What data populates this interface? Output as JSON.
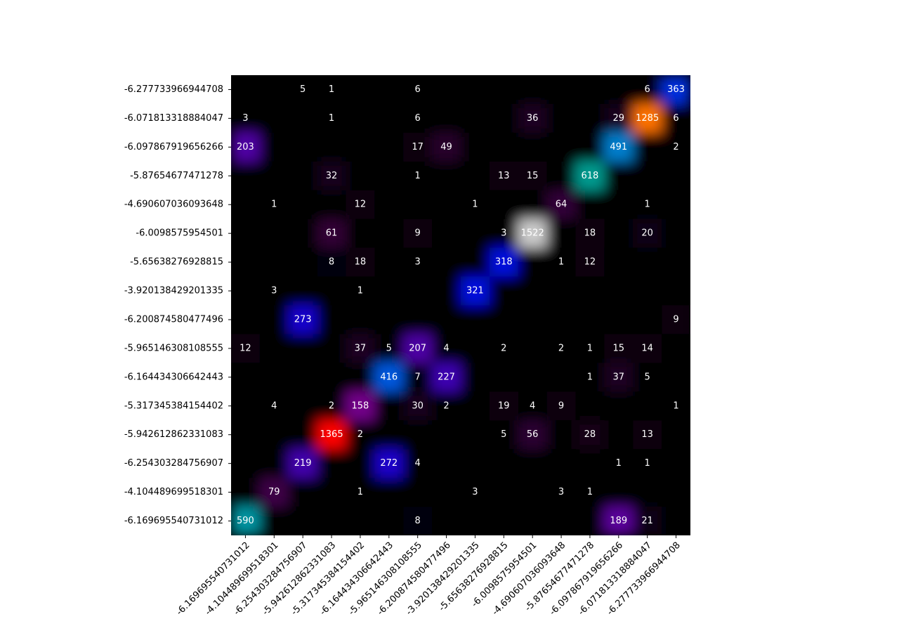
{
  "chart_data": {
    "type": "heatmap",
    "colormap": "nipy_spectral",
    "x": [
      "-6.169695540731012",
      "-4.104489699518301",
      "-6.254303284756907",
      "-5.942612862331083",
      "-5.317345384154402",
      "-6.164434306642443",
      "-5.965146308108555",
      "-6.200874580477496",
      "-3.920138429201335",
      "-5.65638276928815",
      "-6.0098575954501",
      "-4.690607036093648",
      "-5.87654677471278",
      "-6.097867919656266",
      "-6.071813318884047",
      "-6.277733966944708"
    ],
    "y": [
      "-6.277733966944708",
      "-6.071813318884047",
      "-6.097867919656266",
      "-5.87654677471278",
      "-4.690607036093648",
      "-6.0098575954501",
      "-5.65638276928815",
      "-3.920138429201335",
      "-6.200874580477496",
      "-5.965146308108555",
      "-6.164434306642443",
      "-5.317345384154402",
      "-5.942612862331083",
      "-6.254303284756907",
      "-4.104489699518301",
      "-6.169695540731012"
    ],
    "values": [
      [
        0,
        0,
        5,
        1,
        0,
        0,
        6,
        0,
        0,
        0,
        0,
        0,
        0,
        0,
        6,
        363
      ],
      [
        3,
        0,
        0,
        1,
        0,
        0,
        6,
        0,
        0,
        0,
        36,
        0,
        0,
        29,
        1285,
        6
      ],
      [
        203,
        0,
        0,
        0,
        0,
        0,
        17,
        49,
        0,
        0,
        0,
        0,
        0,
        491,
        0,
        2
      ],
      [
        0,
        0,
        0,
        32,
        0,
        0,
        1,
        0,
        0,
        13,
        15,
        0,
        618,
        0,
        0,
        0
      ],
      [
        0,
        1,
        0,
        0,
        12,
        0,
        0,
        0,
        1,
        0,
        0,
        64,
        0,
        0,
        1,
        0
      ],
      [
        0,
        0,
        0,
        61,
        0,
        0,
        9,
        0,
        0,
        3,
        1522,
        0,
        18,
        0,
        20,
        0
      ],
      [
        0,
        0,
        0,
        8,
        18,
        0,
        3,
        0,
        0,
        318,
        0,
        1,
        12,
        0,
        0,
        0
      ],
      [
        0,
        3,
        0,
        0,
        1,
        0,
        0,
        0,
        321,
        0,
        0,
        0,
        0,
        0,
        0,
        0
      ],
      [
        0,
        0,
        273,
        0,
        0,
        0,
        0,
        0,
        0,
        0,
        0,
        0,
        0,
        0,
        0,
        9
      ],
      [
        12,
        0,
        0,
        0,
        37,
        5,
        207,
        4,
        0,
        2,
        0,
        2,
        1,
        15,
        14,
        0
      ],
      [
        0,
        0,
        0,
        0,
        0,
        416,
        7,
        227,
        0,
        0,
        0,
        0,
        1,
        37,
        5,
        0
      ],
      [
        0,
        4,
        0,
        2,
        158,
        0,
        30,
        2,
        0,
        19,
        4,
        9,
        0,
        0,
        0,
        1
      ],
      [
        0,
        0,
        0,
        1365,
        2,
        0,
        0,
        0,
        0,
        5,
        56,
        0,
        28,
        0,
        13,
        0
      ],
      [
        0,
        0,
        219,
        0,
        0,
        272,
        4,
        0,
        0,
        0,
        0,
        0,
        0,
        1,
        1,
        0
      ],
      [
        0,
        79,
        0,
        0,
        1,
        0,
        0,
        0,
        3,
        0,
        0,
        3,
        1,
        0,
        0,
        0
      ],
      [
        590,
        0,
        0,
        0,
        0,
        0,
        8,
        0,
        0,
        0,
        0,
        0,
        0,
        189,
        21,
        0
      ]
    ]
  }
}
